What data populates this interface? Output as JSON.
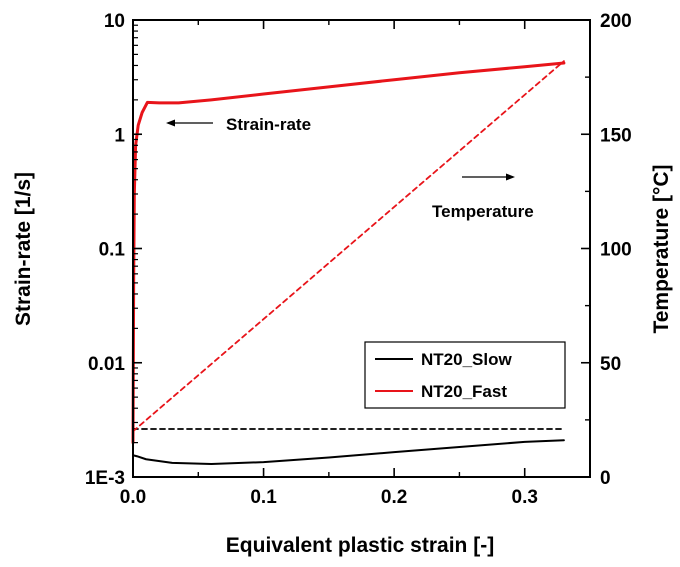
{
  "chart_data": {
    "type": "line",
    "xlabel": "Equivalent plastic strain [-]",
    "ylabel_left": "Strain-rate [1/s]",
    "ylabel_right": "Temperature [°C]",
    "x_range": [
      0,
      0.35
    ],
    "y_left_scale": "log",
    "y_left_range": [
      0.001,
      10
    ],
    "y_right_range": [
      0,
      200
    ],
    "x_ticks": [
      0.0,
      0.1,
      0.2,
      0.3
    ],
    "x_tick_labels": [
      "0.0",
      "0.1",
      "0.2",
      "0.3"
    ],
    "y_left_ticks": [
      0.001,
      0.01,
      0.1,
      1,
      10
    ],
    "y_left_tick_labels": [
      "1E-3",
      "0.01",
      "0.1",
      "1",
      "10"
    ],
    "y_right_ticks": [
      0,
      50,
      100,
      150,
      200
    ],
    "y_right_tick_labels": [
      "0",
      "50",
      "100",
      "150",
      "200"
    ],
    "grid": false,
    "legend_position": "bottom-right",
    "series": [
      {
        "name": "NT20_Slow",
        "axis": "left",
        "quantity": "strain-rate",
        "style": "solid",
        "color": "#000000",
        "points": [
          [
            0,
            0.00155
          ],
          [
            0.003,
            0.00152
          ],
          [
            0.01,
            0.00143
          ],
          [
            0.03,
            0.00133
          ],
          [
            0.06,
            0.0013
          ],
          [
            0.1,
            0.00135
          ],
          [
            0.15,
            0.00148
          ],
          [
            0.2,
            0.00165
          ],
          [
            0.25,
            0.00183
          ],
          [
            0.3,
            0.00203
          ],
          [
            0.33,
            0.0021
          ]
        ]
      },
      {
        "name": "NT20_Fast",
        "axis": "left",
        "quantity": "strain-rate",
        "style": "solid",
        "color": "#e8141a",
        "points": [
          [
            0,
            0.002
          ],
          [
            0.0005,
            0.05
          ],
          [
            0.001,
            0.3
          ],
          [
            0.002,
            0.8
          ],
          [
            0.004,
            1.2
          ],
          [
            0.007,
            1.55
          ],
          [
            0.011,
            1.9
          ],
          [
            0.02,
            1.88
          ],
          [
            0.035,
            1.88
          ],
          [
            0.06,
            2.0
          ],
          [
            0.1,
            2.25
          ],
          [
            0.15,
            2.6
          ],
          [
            0.2,
            3.0
          ],
          [
            0.25,
            3.45
          ],
          [
            0.3,
            3.9
          ],
          [
            0.33,
            4.2
          ]
        ]
      },
      {
        "name": "NT20_Slow",
        "axis": "right",
        "quantity": "temperature",
        "style": "dashed",
        "color": "#000000",
        "points": [
          [
            0,
            21
          ],
          [
            0.33,
            21
          ]
        ]
      },
      {
        "name": "NT20_Fast",
        "axis": "right",
        "quantity": "temperature",
        "style": "dashed",
        "color": "#e8141a",
        "points": [
          [
            0,
            20
          ],
          [
            0.33,
            182
          ]
        ]
      }
    ],
    "annotations": [
      {
        "text": "Strain-rate",
        "arrow": "left"
      },
      {
        "text": "Temperature",
        "arrow": "right"
      }
    ]
  }
}
